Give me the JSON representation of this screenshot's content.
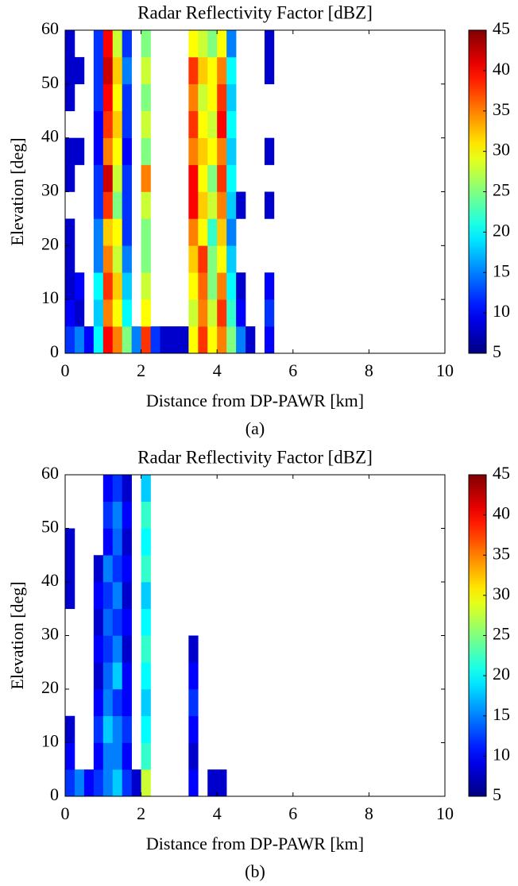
{
  "chart_data": [
    {
      "type": "heatmap",
      "title": "Radar Reflectivity Factor [dBZ]",
      "xlabel": "Distance from DP-PAWR [km]",
      "ylabel": "Elevation [deg]",
      "caption": "(a)",
      "xlim": [
        0,
        10
      ],
      "ylim": [
        0,
        60
      ],
      "xticks": [
        0,
        2,
        4,
        6,
        8,
        10
      ],
      "yticks": [
        0,
        10,
        20,
        30,
        40,
        50,
        60
      ],
      "colormap": "jet",
      "clim": [
        5,
        45
      ],
      "cticks": [
        5,
        10,
        15,
        20,
        25,
        30,
        35,
        40,
        45
      ],
      "x": [
        0.125,
        0.375,
        0.625,
        0.875,
        1.125,
        1.375,
        1.625,
        1.875,
        2.125,
        2.375,
        2.625,
        2.875,
        3.125,
        3.375,
        3.625,
        3.875,
        4.125,
        4.375,
        4.625,
        4.875,
        5.125,
        5.375
      ],
      "y": [
        2.5,
        7.5,
        12.5,
        17.5,
        22.5,
        27.5,
        32.5,
        37.5,
        42.5,
        47.5,
        52.5,
        57.5
      ],
      "values": [
        [
          12,
          15,
          10,
          20,
          40,
          35,
          25,
          15,
          38,
          12,
          8,
          8,
          8,
          30,
          38,
          30,
          35,
          25,
          15,
          8,
          null,
          10
        ],
        [
          10,
          8,
          null,
          18,
          35,
          30,
          20,
          null,
          30,
          null,
          null,
          null,
          null,
          28,
          35,
          28,
          38,
          22,
          10,
          null,
          null,
          12
        ],
        [
          8,
          10,
          null,
          20,
          38,
          32,
          18,
          null,
          28,
          null,
          null,
          null,
          null,
          30,
          36,
          25,
          35,
          20,
          8,
          null,
          null,
          10
        ],
        [
          8,
          null,
          null,
          15,
          35,
          28,
          15,
          null,
          25,
          null,
          null,
          null,
          null,
          32,
          38,
          25,
          30,
          18,
          null,
          null,
          null,
          null
        ],
        [
          8,
          null,
          null,
          15,
          32,
          30,
          12,
          null,
          25,
          null,
          null,
          null,
          null,
          35,
          30,
          22,
          32,
          15,
          null,
          null,
          null,
          null
        ],
        [
          null,
          null,
          null,
          12,
          38,
          25,
          12,
          null,
          28,
          null,
          null,
          null,
          null,
          40,
          32,
          28,
          35,
          18,
          8,
          null,
          null,
          8
        ],
        [
          8,
          null,
          null,
          12,
          42,
          28,
          12,
          null,
          35,
          null,
          null,
          null,
          null,
          40,
          30,
          25,
          38,
          20,
          null,
          null,
          null,
          null
        ],
        [
          8,
          8,
          null,
          10,
          35,
          30,
          10,
          null,
          25,
          null,
          null,
          null,
          null,
          35,
          32,
          30,
          35,
          18,
          null,
          null,
          null,
          8
        ],
        [
          null,
          null,
          null,
          10,
          38,
          32,
          12,
          null,
          28,
          null,
          null,
          null,
          null,
          38,
          30,
          28,
          40,
          20,
          null,
          null,
          null,
          null
        ],
        [
          8,
          null,
          null,
          12,
          40,
          30,
          12,
          null,
          25,
          null,
          null,
          null,
          null,
          35,
          28,
          30,
          38,
          18,
          null,
          null,
          null,
          null
        ],
        [
          8,
          8,
          null,
          12,
          42,
          32,
          15,
          null,
          28,
          null,
          null,
          null,
          null,
          38,
          32,
          30,
          35,
          20,
          null,
          null,
          null,
          8
        ],
        [
          8,
          null,
          null,
          12,
          40,
          28,
          12,
          null,
          25,
          null,
          null,
          null,
          null,
          30,
          28,
          25,
          30,
          15,
          null,
          null,
          null,
          8
        ]
      ]
    },
    {
      "type": "heatmap",
      "title": "Radar Reflectivity Factor [dBZ]",
      "xlabel": "Distance from DP-PAWR [km]",
      "ylabel": "Elevation [deg]",
      "caption": "(b)",
      "xlim": [
        0,
        10
      ],
      "ylim": [
        0,
        60
      ],
      "xticks": [
        0,
        2,
        4,
        6,
        8,
        10
      ],
      "yticks": [
        0,
        10,
        20,
        30,
        40,
        50,
        60
      ],
      "colormap": "jet",
      "clim": [
        5,
        45
      ],
      "cticks": [
        5,
        10,
        15,
        20,
        25,
        30,
        35,
        40,
        45
      ],
      "x": [
        0.125,
        0.375,
        0.625,
        0.875,
        1.125,
        1.375,
        1.625,
        1.875,
        2.125,
        2.375,
        2.625,
        2.875,
        3.125,
        3.375,
        3.625,
        3.875,
        4.125,
        4.375,
        4.625,
        4.875,
        5.125,
        5.375
      ],
      "y": [
        2.5,
        7.5,
        12.5,
        17.5,
        22.5,
        27.5,
        32.5,
        37.5,
        42.5,
        47.5,
        52.5,
        57.5
      ],
      "values": [
        [
          12,
          15,
          10,
          12,
          15,
          18,
          12,
          8,
          28,
          null,
          null,
          null,
          null,
          10,
          null,
          8,
          8,
          null,
          null,
          null,
          null,
          null
        ],
        [
          10,
          null,
          null,
          10,
          15,
          15,
          10,
          null,
          22,
          null,
          null,
          null,
          null,
          8,
          null,
          null,
          null,
          null,
          null,
          null,
          null,
          null
        ],
        [
          8,
          null,
          null,
          12,
          18,
          15,
          12,
          null,
          20,
          null,
          null,
          null,
          null,
          10,
          null,
          null,
          null,
          null,
          null,
          null,
          null,
          null
        ],
        [
          null,
          null,
          null,
          10,
          15,
          12,
          10,
          null,
          18,
          null,
          null,
          null,
          null,
          12,
          null,
          null,
          null,
          null,
          null,
          null,
          null,
          null
        ],
        [
          null,
          null,
          null,
          8,
          14,
          18,
          10,
          null,
          20,
          null,
          null,
          null,
          null,
          10,
          null,
          null,
          null,
          null,
          null,
          null,
          null,
          null
        ],
        [
          null,
          null,
          null,
          10,
          12,
          15,
          8,
          null,
          22,
          null,
          null,
          null,
          null,
          8,
          null,
          null,
          null,
          null,
          null,
          null,
          null,
          null
        ],
        [
          null,
          null,
          null,
          8,
          14,
          12,
          10,
          null,
          20,
          null,
          null,
          null,
          null,
          null,
          null,
          null,
          null,
          null,
          null,
          null,
          null,
          null
        ],
        [
          8,
          null,
          null,
          10,
          12,
          15,
          8,
          null,
          18,
          null,
          null,
          null,
          null,
          null,
          null,
          null,
          null,
          null,
          null,
          null,
          null,
          null
        ],
        [
          8,
          null,
          null,
          8,
          15,
          12,
          10,
          null,
          22,
          null,
          null,
          null,
          null,
          null,
          null,
          null,
          null,
          null,
          null,
          null,
          null,
          null
        ],
        [
          8,
          null,
          null,
          null,
          10,
          14,
          8,
          null,
          20,
          null,
          null,
          null,
          null,
          null,
          null,
          null,
          null,
          null,
          null,
          null,
          null,
          null
        ],
        [
          null,
          null,
          null,
          null,
          12,
          15,
          10,
          null,
          22,
          null,
          null,
          null,
          null,
          null,
          null,
          null,
          null,
          null,
          null,
          null,
          null,
          null
        ],
        [
          null,
          null,
          null,
          null,
          10,
          12,
          8,
          null,
          18,
          null,
          null,
          null,
          null,
          null,
          null,
          null,
          null,
          null,
          null,
          null,
          null,
          null
        ]
      ]
    }
  ]
}
